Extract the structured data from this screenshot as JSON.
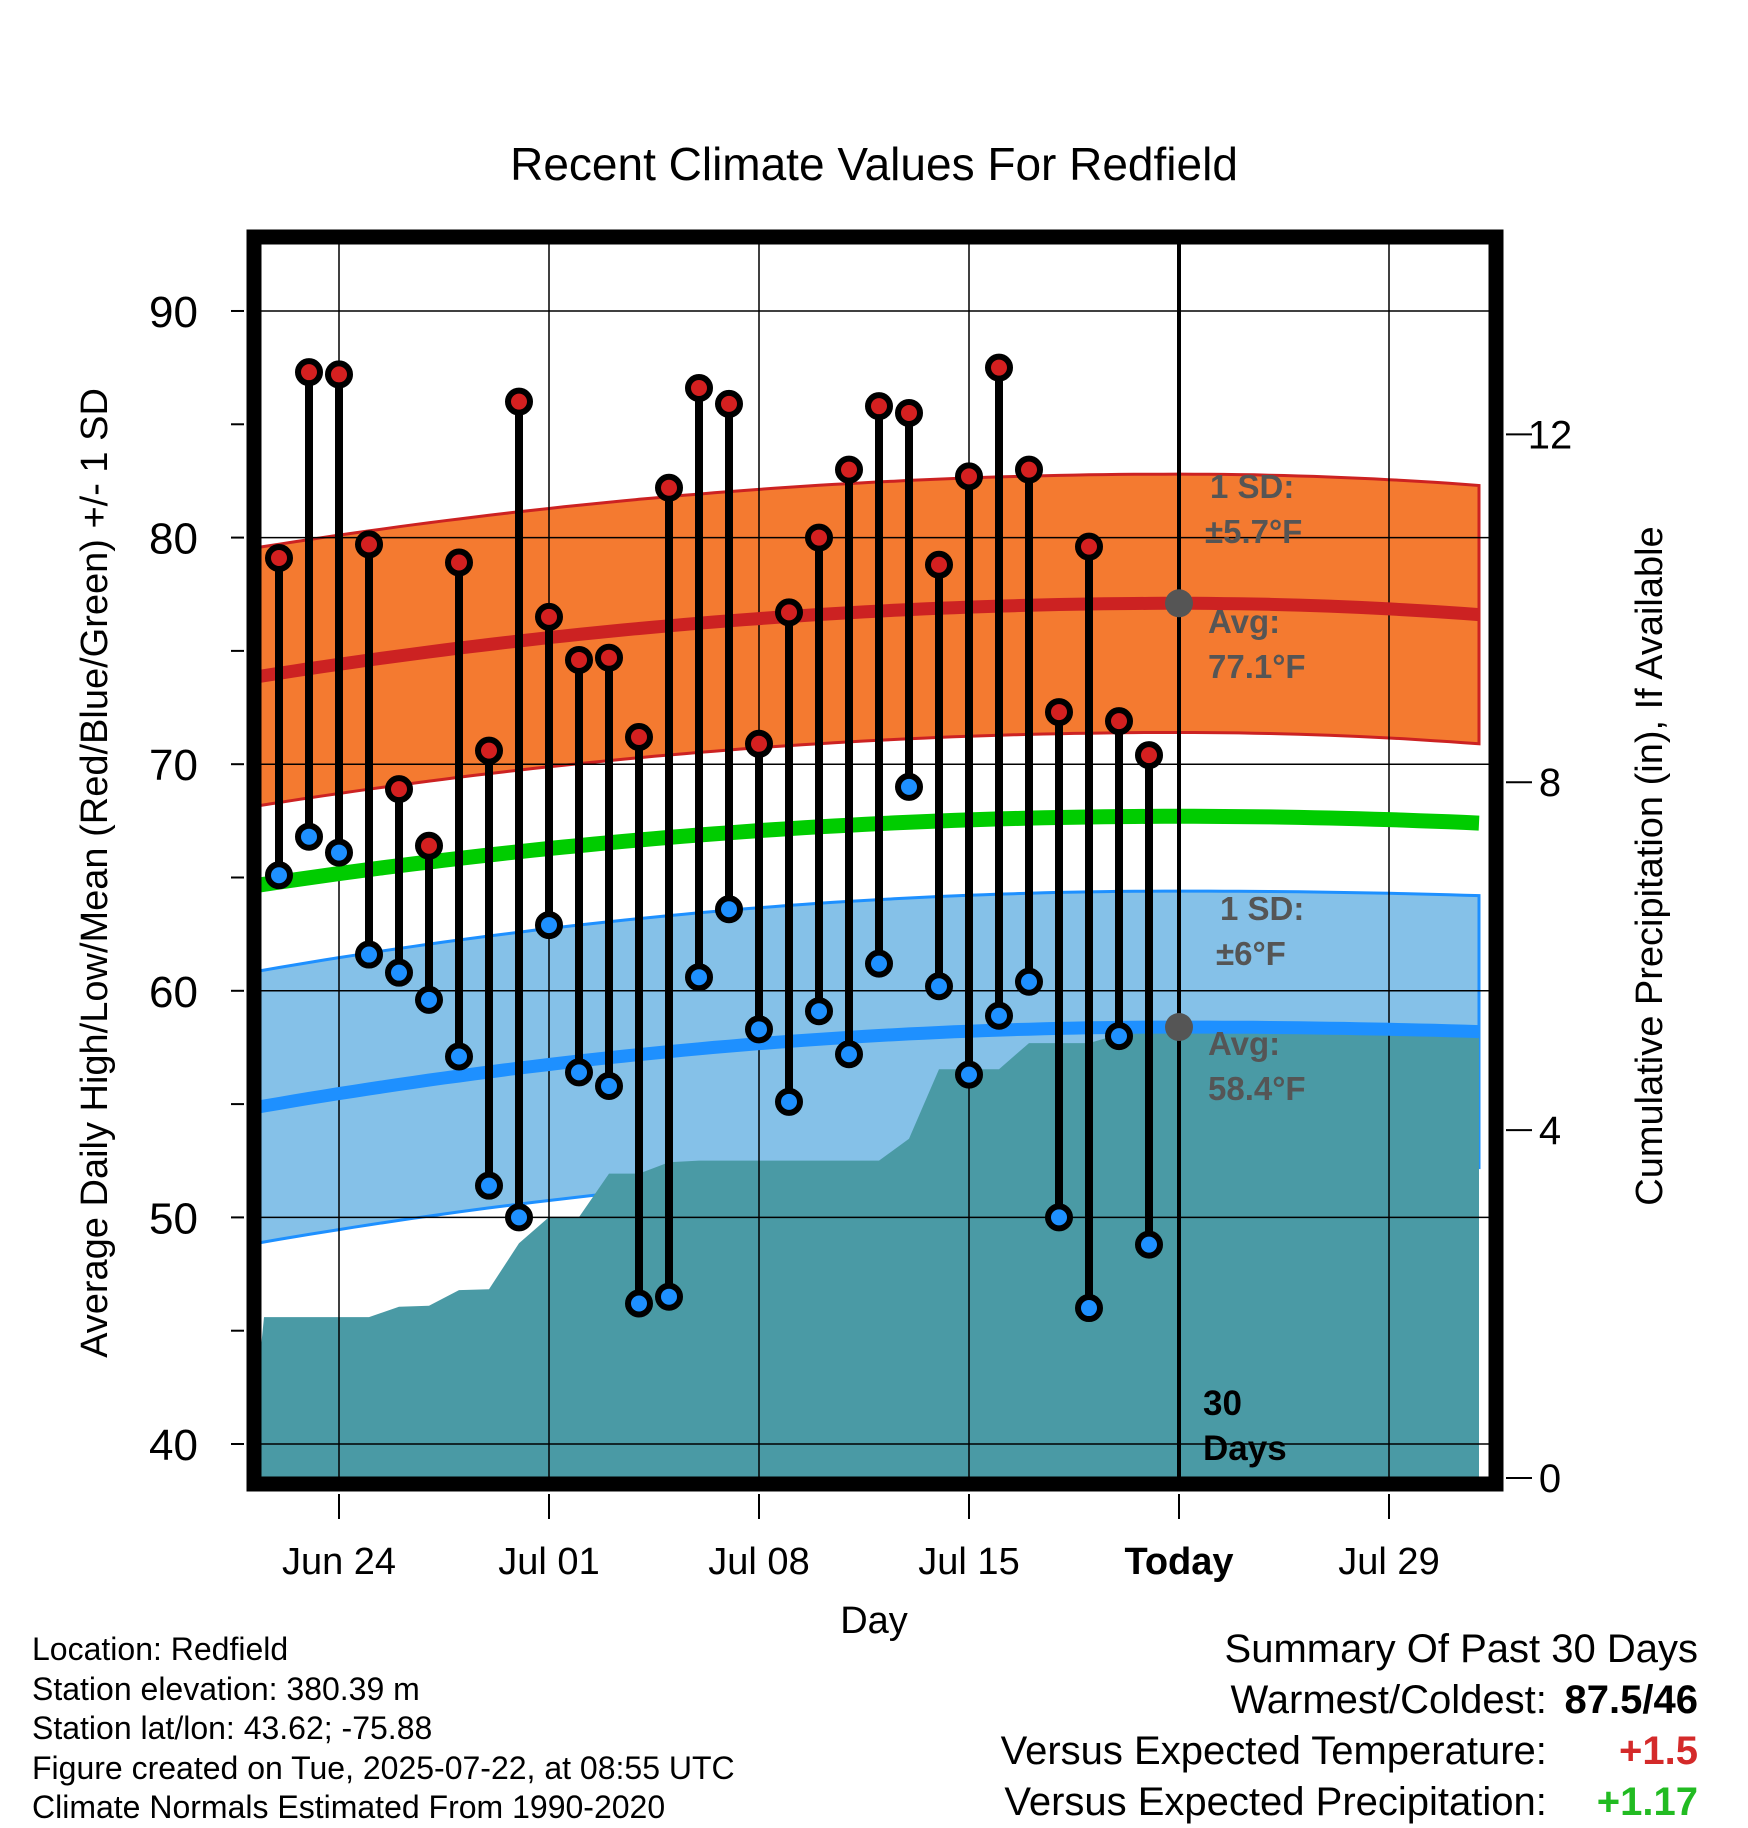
{
  "chart_data": {
    "type": "line",
    "title": "Recent Climate Values For Redfield",
    "xlabel": "Day",
    "ylabel": "Average Daily High/Low/Mean (Red/Blue/Green) +/- 1 SD",
    "y2label": "Cumulative Precipitation (in), If Available",
    "ylim": [
      38.5,
      93
    ],
    "y2lim": [
      0,
      14.2
    ],
    "yticks": [
      "40",
      "50",
      "60",
      "70",
      "80",
      "90"
    ],
    "y2ticks": [
      "0",
      "4",
      "8",
      "12"
    ],
    "xticks": [
      "Jun 24",
      "Jul 01",
      "Jul 08",
      "Jul 15",
      "Today",
      "Jul 29"
    ],
    "grid": true,
    "x_start": "Jun 21",
    "x_end": "Aug 01",
    "today": "Jul 22",
    "today_label": [
      "30",
      "Days"
    ],
    "dates": [
      "Jun 22",
      "Jun 23",
      "Jun 24",
      "Jun 25",
      "Jun 26",
      "Jun 27",
      "Jun 28",
      "Jun 29",
      "Jun 30",
      "Jul 01",
      "Jul 02",
      "Jul 03",
      "Jul 04",
      "Jul 05",
      "Jul 06",
      "Jul 07",
      "Jul 08",
      "Jul 09",
      "Jul 10",
      "Jul 11",
      "Jul 12",
      "Jul 13",
      "Jul 14",
      "Jul 15",
      "Jul 16",
      "Jul 17",
      "Jul 18",
      "Jul 19",
      "Jul 20",
      "Jul 21"
    ],
    "highs": [
      79.1,
      87.3,
      87.2,
      79.7,
      68.9,
      66.4,
      78.9,
      70.6,
      86.0,
      76.5,
      74.6,
      74.7,
      71.2,
      82.2,
      86.6,
      85.9,
      70.9,
      76.7,
      80.0,
      83.0,
      85.8,
      85.5,
      78.8,
      82.7,
      87.5,
      83.0,
      72.3,
      79.6,
      71.9,
      70.4
    ],
    "lows": [
      65.1,
      66.8,
      66.1,
      61.6,
      60.8,
      59.6,
      57.1,
      51.4,
      50.0,
      62.9,
      56.4,
      55.8,
      46.2,
      46.5,
      60.6,
      63.6,
      58.3,
      55.1,
      59.1,
      57.2,
      61.2,
      69.0,
      60.2,
      56.3,
      58.9,
      60.4,
      50.0,
      46.0,
      58.0,
      48.8
    ],
    "precip_dates": [
      "Jun 21",
      "Jun 21.5",
      "Jun 25",
      "Jun 26",
      "Jun 27",
      "Jun 28",
      "Jun 29",
      "Jun 30",
      "Jul 01",
      "Jul 02",
      "Jul 03",
      "Jul 04",
      "Jul 05",
      "Jul 06",
      "Jul 07",
      "Jul 08",
      "Jul 09",
      "Jul 10",
      "Jul 11",
      "Jul 12",
      "Jul 13",
      "Jul 14",
      "Jul 15",
      "Jul 16",
      "Jul 17",
      "Jul 18",
      "Jul 19",
      "Jul 20",
      "Jul 21",
      "Aug 01"
    ],
    "precip_cumulative": [
      0.1,
      1.85,
      1.85,
      1.97,
      1.98,
      2.16,
      2.17,
      2.7,
      3.0,
      3.0,
      3.5,
      3.5,
      3.63,
      3.65,
      3.65,
      3.65,
      3.65,
      3.65,
      3.65,
      3.65,
      3.9,
      4.7,
      4.7,
      4.7,
      5.0,
      5.0,
      5.0,
      5.1,
      5.2,
      5.2
    ],
    "normal_high": {
      "avg": [
        73.8,
        77.1,
        76.6
      ],
      "sd": 5.7,
      "avg_label": "Avg:",
      "avg_value": "77.1°F",
      "sd_label": "1 SD:",
      "sd_value": "±5.7°F"
    },
    "normal_low": {
      "avg": [
        54.8,
        58.4,
        58.2
      ],
      "sd": 6.0,
      "avg_label": "Avg:",
      "avg_value": "58.4°F",
      "sd_label": "1 SD:",
      "sd_value": "±6°F"
    },
    "normal_mean": [
      64.6,
      67.7,
      67.4
    ],
    "colors": {
      "high_band": "#f47a30",
      "high_line": "#cc2222",
      "low_band": "#85c1e8",
      "low_line": "#1e90ff",
      "mean_line": "#00cc00",
      "precip": "#4a9aa5",
      "high_dot": "#d42020",
      "low_dot": "#1e90ff",
      "today_marker": "#555555",
      "label_gray": "#555555"
    }
  },
  "info": {
    "location": "Location: Redfield",
    "elevation": "Station elevation: 380.39 m",
    "latlon": "Station lat/lon: 43.62; -75.88",
    "created": "Figure created on Tue, 2025-07-22, at 08:55 UTC",
    "normals": "Climate Normals Estimated From 1990-2020"
  },
  "summary": {
    "title": "Summary Of Past 30 Days",
    "warm_cold_label": "Warmest/Coldest:",
    "warm_cold_value": "87.5/46",
    "temp_label": "Versus Expected Temperature:",
    "temp_value": "+1.5",
    "precip_label": "Versus Expected Precipitation:",
    "precip_value": "+1.17"
  }
}
